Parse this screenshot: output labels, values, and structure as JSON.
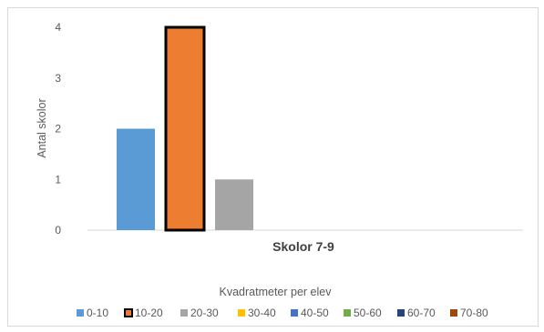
{
  "chart_data": {
    "type": "bar",
    "categories": [
      "Skolor 7-9"
    ],
    "series": [
      {
        "name": "0-10",
        "values": [
          2
        ],
        "color": "#5b9bd5"
      },
      {
        "name": "10-20",
        "values": [
          4
        ],
        "color": "#ed7d31",
        "highlighted": true
      },
      {
        "name": "20-30",
        "values": [
          1
        ],
        "color": "#a5a5a5"
      },
      {
        "name": "30-40",
        "values": [
          0
        ],
        "color": "#ffc000"
      },
      {
        "name": "40-50",
        "values": [
          0
        ],
        "color": "#4472c4"
      },
      {
        "name": "50-60",
        "values": [
          0
        ],
        "color": "#70ad47"
      },
      {
        "name": "60-70",
        "values": [
          0
        ],
        "color": "#264478"
      },
      {
        "name": "70-80",
        "values": [
          0
        ],
        "color": "#9e480e"
      }
    ],
    "ylabel": "Antal skolor",
    "xlabel": "Kvadratmeter per elev",
    "ylim": [
      0,
      4
    ],
    "yticks": [
      "0",
      "1",
      "2",
      "3",
      "4"
    ],
    "grid": false,
    "legend_position": "bottom"
  }
}
